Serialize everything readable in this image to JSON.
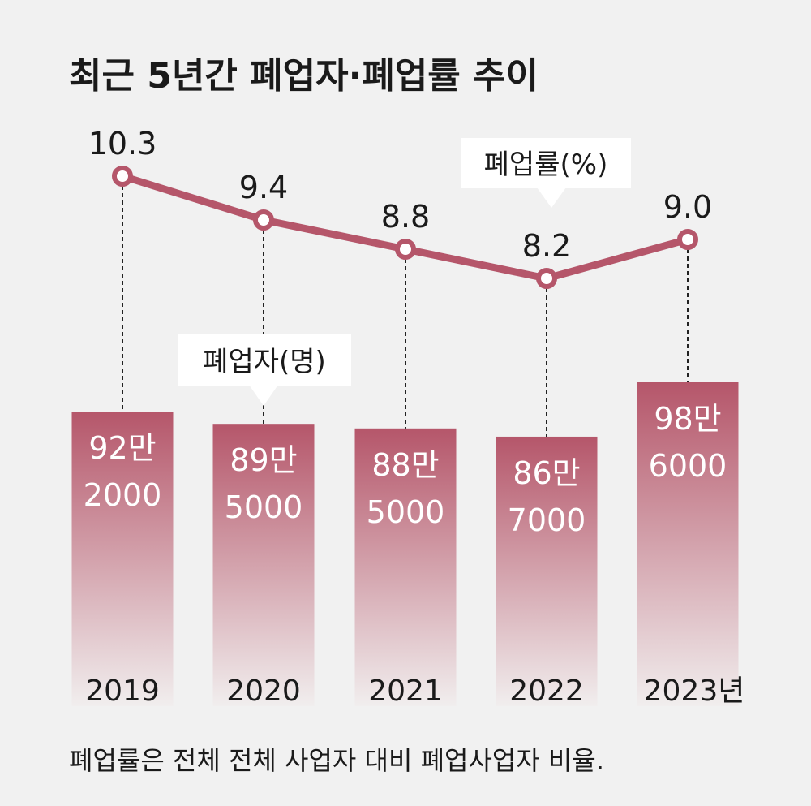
{
  "chart_data": {
    "type": "bar+line",
    "title": "최근 5년간 폐업자·폐업률 추이",
    "categories": [
      "2019",
      "2020",
      "2021",
      "2022",
      "2023년"
    ],
    "series": [
      {
        "name": "폐업자(명)",
        "type": "bar",
        "values": [
          922000,
          895000,
          885000,
          867000,
          986000
        ],
        "labels": [
          [
            "92만",
            "2000"
          ],
          [
            "89만",
            "5000"
          ],
          [
            "88만",
            "5000"
          ],
          [
            "86만",
            "7000"
          ],
          [
            "98만",
            "6000"
          ]
        ]
      },
      {
        "name": "폐업률(%)",
        "type": "line",
        "values": [
          10.3,
          9.4,
          8.8,
          8.2,
          9.0
        ],
        "labels": [
          "10.3",
          "9.4",
          "8.8",
          "8.2",
          "9.0"
        ]
      }
    ],
    "footnote": "폐업률은 전체 전체 사업자 대비 폐업사업자 비율.",
    "colors": {
      "accent": "#b5566a",
      "bar_top": "#b5566a",
      "bar_bottom": "#f1eeee",
      "background": "#f1f1f1"
    }
  }
}
